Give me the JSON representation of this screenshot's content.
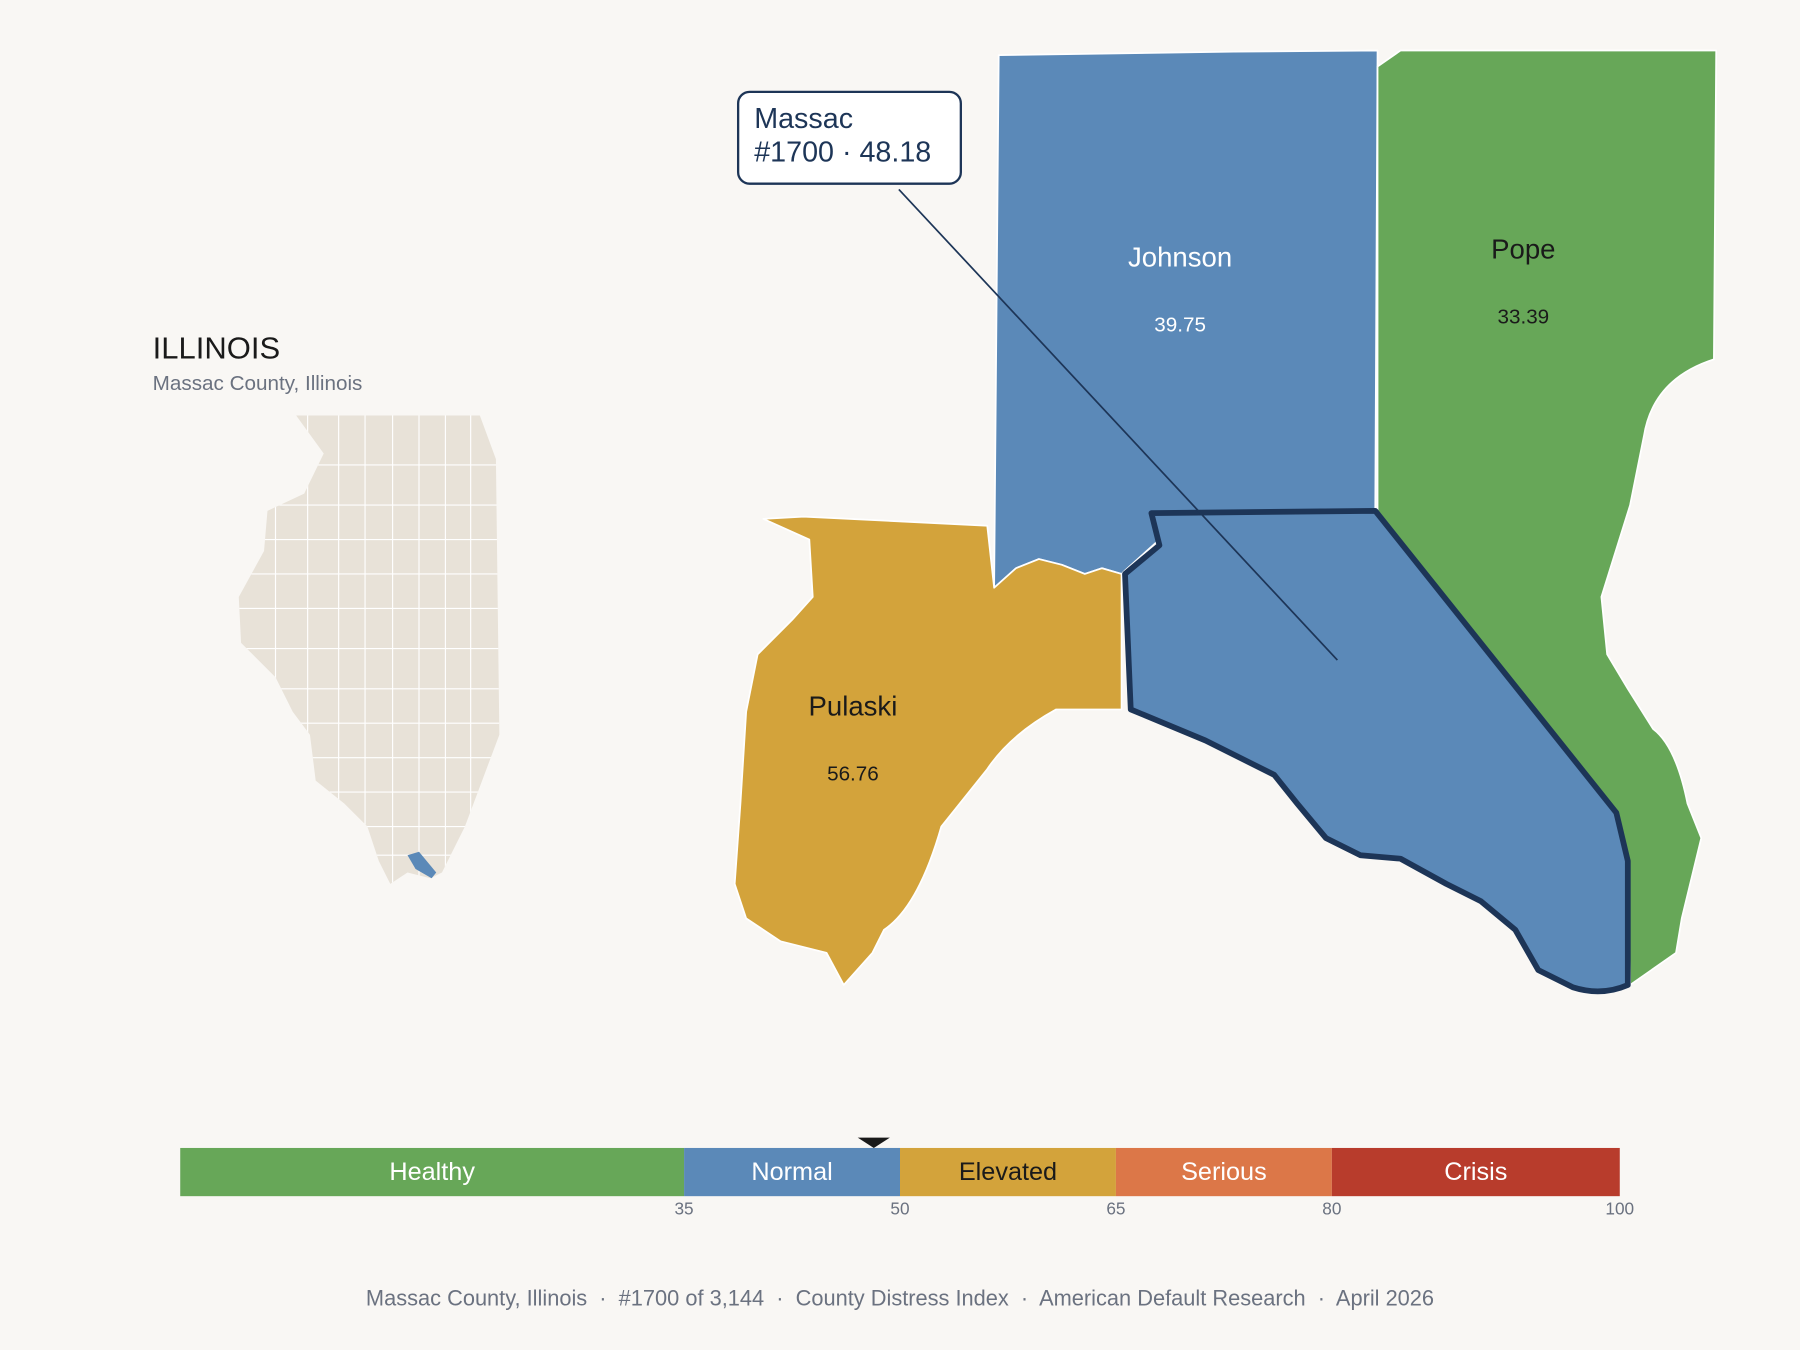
{
  "header": {
    "title": "ILLINOIS",
    "subtitle": "Massac County, Illinois"
  },
  "map": {
    "counties": [
      {
        "name": "Johnson",
        "value": 39.75,
        "color": "#5b89b8"
      },
      {
        "name": "Pope",
        "value": 33.39,
        "color": "#67a758"
      },
      {
        "name": "Pulaski",
        "value": 56.76,
        "color": "#d3a33b"
      },
      {
        "name": "Massac",
        "color": "#5b89b8"
      }
    ]
  },
  "tooltip": {
    "name": "Massac",
    "detail": "#1700 · 48.18"
  },
  "legend": {
    "lim": [
      0,
      100
    ],
    "selected_value": 48.18,
    "bands": [
      {
        "name": "Healthy",
        "color": "#67a758"
      },
      {
        "name": "Normal",
        "color": "#5b89b8"
      },
      {
        "name": "Elevated",
        "color": "#d3a33b"
      },
      {
        "name": "Serious",
        "color": "#dc7748"
      },
      {
        "name": "Crisis",
        "color": "#b83c2c"
      }
    ],
    "ticks": [
      35,
      50,
      65,
      80,
      100
    ]
  },
  "footer": "Massac County, Illinois  ·  #1700 of 3,144  ·  County Distress Index  ·  American Default Research  ·  April 2026"
}
